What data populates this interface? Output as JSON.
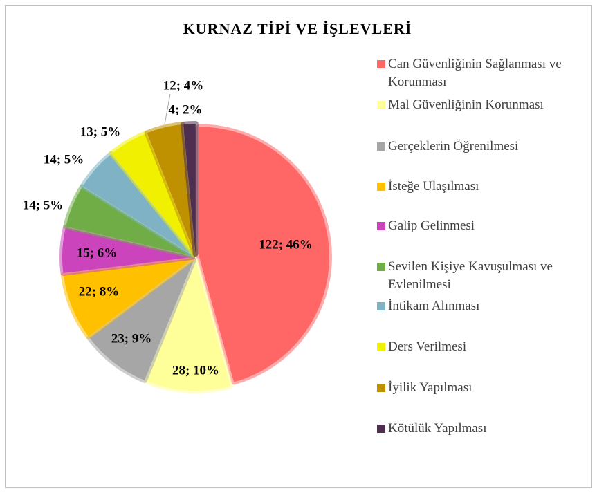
{
  "chart_data": {
    "type": "pie",
    "title": "KURNAZ TİPİ VE İŞLEVLERİ",
    "categories": [
      "Can Güvenliğinin Sağlanması ve Korunması",
      "Mal Güvenliğinin Korunması",
      "Gerçeklerin Öğrenilmesi",
      "İsteğe Ulaşılması",
      "Galip Gelinmesi",
      "Sevilen Kişiye Kavuşulması ve Evlenilmesi",
      "İntikam Alınması",
      "Ders Verilmesi",
      "İyilik Yapılması",
      "Kötülük Yapılması"
    ],
    "values": [
      122,
      28,
      23,
      22,
      15,
      14,
      14,
      13,
      12,
      4
    ],
    "value_labels": [
      "122; 46%",
      "28; 10%",
      "23; 9%",
      "22; 8%",
      "15; 6%",
      "14; 5%",
      "14; 5%",
      "13; 5%",
      "12; 4%",
      "4; 2%"
    ],
    "colors": [
      "#ff6666",
      "#ffff99",
      "#a6a6a6",
      "#ffc000",
      "#cc44bb",
      "#70ad47",
      "#7fb2c4",
      "#f0f000",
      "#bf9000",
      "#4f2f4f"
    ],
    "legend": "right"
  }
}
